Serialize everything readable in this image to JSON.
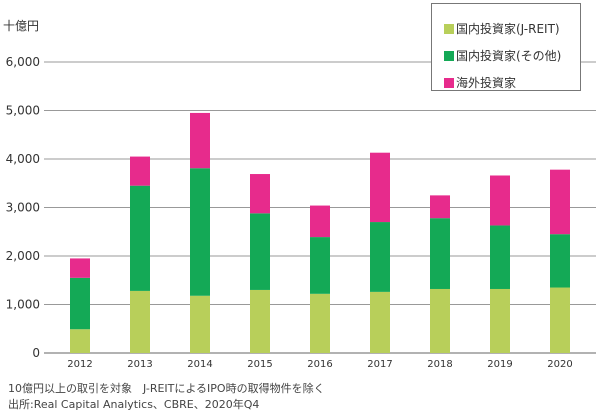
{
  "chart_data": {
    "type": "bar",
    "stacked": true,
    "ylabel": "十億円",
    "ylim": [
      0,
      6000
    ],
    "yticks": [
      0,
      1000,
      2000,
      3000,
      4000,
      5000,
      6000
    ],
    "ytick_labels": [
      "0",
      "1,000",
      "2,000",
      "3,000",
      "4,000",
      "5,000",
      "6,000"
    ],
    "grid": true,
    "legend_position": "top-right",
    "categories": [
      "2012",
      "2013",
      "2014",
      "2015",
      "2016",
      "2017",
      "2018",
      "2019",
      "2020"
    ],
    "series": [
      {
        "name": "国内投資家(J-REIT)",
        "color": "#b8cf5a",
        "values": [
          490,
          1280,
          1180,
          1300,
          1220,
          1260,
          1320,
          1320,
          1350
        ]
      },
      {
        "name": "国内投資家(その他)",
        "color": "#14a956",
        "values": [
          1060,
          2170,
          2630,
          1580,
          1170,
          1440,
          1460,
          1310,
          1100
        ]
      },
      {
        "name": "海外投資家",
        "color": "#e72b8c",
        "values": [
          400,
          600,
          1140,
          810,
          650,
          1430,
          470,
          1030,
          1330
        ]
      }
    ]
  },
  "footnotes": {
    "note": "10億円以上の取引を対象　J-REITによるIPO時の取得物件を除く",
    "source": "出所:Real Capital Analytics、CBRE、2020年Q4"
  }
}
